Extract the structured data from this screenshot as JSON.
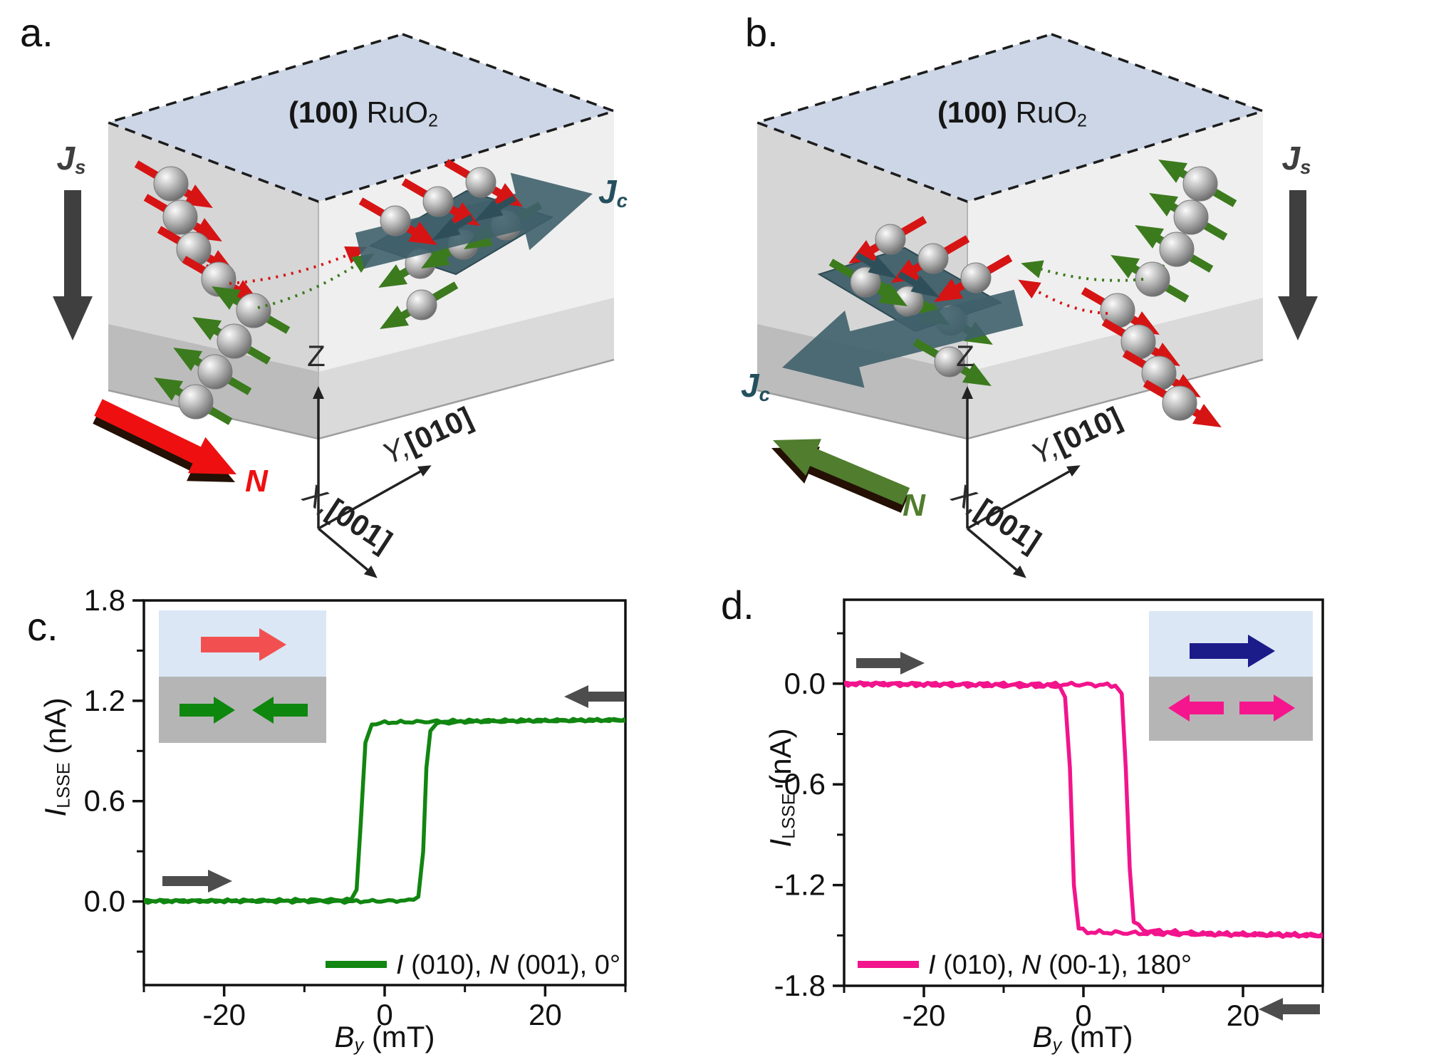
{
  "panel_a": {
    "tag": "a.",
    "crystal": {
      "bold": "(100)",
      "main": " RuO",
      "sub": "2"
    },
    "spin_current": {
      "main": "J",
      "sub": "s"
    },
    "charge_current": {
      "main": "J",
      "sub": "c"
    },
    "neel_label": "N",
    "axes": {
      "z": "Z",
      "y_letter": "Y,",
      "y_dir": "[010]",
      "x_letter": "X,",
      "x_dir": "[001]"
    },
    "colors": {
      "neel_arrow": "#ee1010",
      "charge_arrow": "#3f606c",
      "charge_text": "#24505e",
      "spin_current_arrow": "#3f3f3f",
      "spin_red": "#d61414",
      "spin_green": "#3c7a1e",
      "top_face": "#ccd6e6",
      "left_face": "#d6d6d6",
      "right_face": "#efefef"
    }
  },
  "panel_b": {
    "tag": "b.",
    "crystal": {
      "bold": "(100)",
      "main": " RuO",
      "sub": "2"
    },
    "spin_current": {
      "main": "J",
      "sub": "s"
    },
    "charge_current": {
      "main": "J",
      "sub": "c"
    },
    "neel_label": "N",
    "axes": {
      "z": "Z",
      "y_letter": "Y,",
      "y_dir": "[010]",
      "x_letter": "X,",
      "x_dir": "[001]"
    },
    "colors": {
      "neel_arrow": "#507d2e",
      "charge_arrow": "#3f606c",
      "charge_text": "#24505e",
      "spin_current_arrow": "#3f3f3f",
      "spin_red": "#d61414",
      "spin_green": "#3c7a1e",
      "top_face": "#ccd6e6",
      "left_face": "#d6d6d6",
      "right_face": "#efefef"
    }
  },
  "chart_data": [
    {
      "id": "c",
      "tag": "c.",
      "type": "line",
      "xlabel_parts": [
        "B",
        "y",
        " (mT)"
      ],
      "ylabel_parts": [
        "I",
        "LSSE",
        " (nA)"
      ],
      "xlim": [
        -30,
        30
      ],
      "ylim": [
        -0.5,
        1.8
      ],
      "xticks": [
        {
          "v": -20,
          "label": "-20"
        },
        {
          "v": 0,
          "label": "0"
        },
        {
          "v": 20,
          "label": "20"
        }
      ],
      "xticks_minor": [
        -30,
        -10,
        10,
        30
      ],
      "yticks": [
        {
          "v": 1.8,
          "label": "1.8"
        },
        {
          "v": 1.2,
          "label": "1.2"
        },
        {
          "v": 0.6,
          "label": "0.6"
        },
        {
          "v": 0,
          "label": "0.0"
        }
      ],
      "yticks_minor": [
        1.5,
        0.9,
        0.3,
        -0.3
      ],
      "legend": {
        "parts": [
          "I",
          " (010), ",
          "N",
          " (001), 0°"
        ]
      },
      "line_color": "#118611",
      "sweep_arrow_color": "#4d4d4d",
      "saturation_nA": 1.08,
      "switch_up_mT": 4.8,
      "switch_down_mT": -2.9,
      "series": [
        {
          "name": "up-sweep",
          "points": [
            [
              -30,
              0.005
            ],
            [
              -5,
              0.0
            ],
            [
              3.0,
              0.005
            ],
            [
              4.2,
              0.03
            ],
            [
              4.8,
              0.3
            ],
            [
              5.2,
              0.8
            ],
            [
              5.7,
              1.02
            ],
            [
              6.5,
              1.065
            ],
            [
              10,
              1.075
            ],
            [
              30,
              1.085
            ]
          ]
        },
        {
          "name": "down-sweep",
          "points": [
            [
              30,
              1.085
            ],
            [
              10,
              1.08
            ],
            [
              0,
              1.07
            ],
            [
              -1.6,
              1.06
            ],
            [
              -2.4,
              0.95
            ],
            [
              -3.0,
              0.45
            ],
            [
              -3.5,
              0.07
            ],
            [
              -4.2,
              0.01
            ],
            [
              -30,
              0.0
            ]
          ]
        }
      ],
      "inset": {
        "top_bg": "#dbe7f5",
        "bottom_bg": "#b5b5b5",
        "top_arrow_color": "#f25050",
        "bottom_arrow_color": "#0e870e",
        "top_arrow_dirs": [
          "right"
        ],
        "bottom_arrow_dirs": [
          "right",
          "left"
        ]
      }
    },
    {
      "id": "d",
      "tag": "d.",
      "type": "line",
      "xlabel_parts": [
        "B",
        "y",
        " (mT)"
      ],
      "ylabel_parts": [
        "I",
        "LSSE",
        " (nA)"
      ],
      "xlim": [
        -30,
        30
      ],
      "ylim": [
        -1.8,
        0.5
      ],
      "xticks": [
        {
          "v": -20,
          "label": "-20"
        },
        {
          "v": 0,
          "label": "0"
        },
        {
          "v": 20,
          "label": "20"
        }
      ],
      "xticks_minor": [
        -30,
        -10,
        10,
        30
      ],
      "yticks": [
        {
          "v": 0,
          "label": "0.0"
        },
        {
          "v": -0.6,
          "label": "-0.6"
        },
        {
          "v": -1.2,
          "label": "-1.2"
        },
        {
          "v": -1.8,
          "label": "-1.8"
        }
      ],
      "yticks_minor": [
        0.3,
        -0.3,
        -0.9,
        -1.5
      ],
      "legend": {
        "parts": [
          "I",
          " (010), ",
          "N",
          " (00-1), 180°"
        ]
      },
      "line_color": "#f2148c",
      "sweep_arrow_color": "#4d4d4d",
      "saturation_nA": -1.5,
      "switch_up_mT": 5.3,
      "switch_down_mT": -1.4,
      "series": [
        {
          "name": "up-sweep",
          "points": [
            [
              -30,
              0.0
            ],
            [
              0,
              -0.005
            ],
            [
              4.0,
              -0.01
            ],
            [
              4.8,
              -0.06
            ],
            [
              5.3,
              -0.5
            ],
            [
              5.8,
              -1.1
            ],
            [
              6.3,
              -1.42
            ],
            [
              7.5,
              -1.47
            ],
            [
              15,
              -1.49
            ],
            [
              30,
              -1.5
            ]
          ]
        },
        {
          "name": "down-sweep",
          "points": [
            [
              30,
              -1.5
            ],
            [
              10,
              -1.49
            ],
            [
              0.5,
              -1.48
            ],
            [
              -0.6,
              -1.46
            ],
            [
              -1.2,
              -1.2
            ],
            [
              -1.7,
              -0.5
            ],
            [
              -2.3,
              -0.08
            ],
            [
              -3.0,
              -0.015
            ],
            [
              -30,
              0.0
            ]
          ]
        }
      ],
      "inset": {
        "top_bg": "#dbe7f5",
        "bottom_bg": "#b5b5b5",
        "top_arrow_color": "#1b1b8a",
        "bottom_arrow_color": "#f5168d",
        "top_arrow_dirs": [
          "right"
        ],
        "bottom_arrow_dirs": [
          "left",
          "right"
        ]
      }
    }
  ]
}
